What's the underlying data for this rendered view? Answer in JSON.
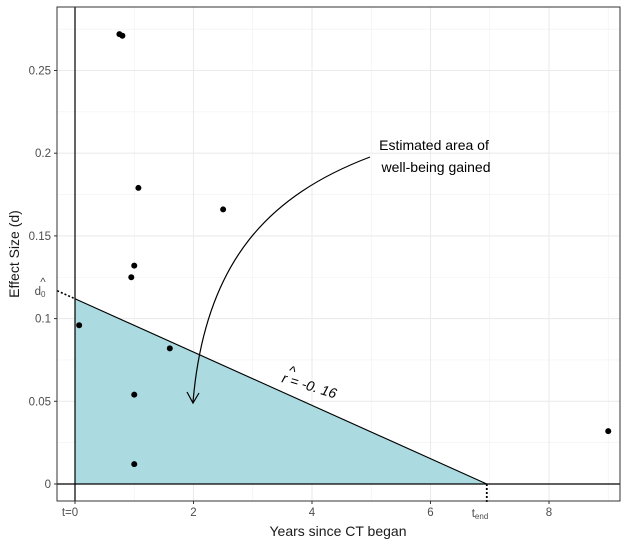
{
  "chart_data": {
    "type": "scatter",
    "xlabel": "Years since CT began",
    "ylabel": "Effect Size (d)",
    "xlim": [
      -0.3,
      9.2
    ],
    "ylim": [
      -0.005,
      0.29
    ],
    "grid": true,
    "x_ticks": [
      {
        "value": 0,
        "label": "t=0"
      },
      {
        "value": 2,
        "label": "2"
      },
      {
        "value": 4,
        "label": "4"
      },
      {
        "value": 6,
        "label": "6"
      },
      {
        "value": 8,
        "label": "8"
      }
    ],
    "y_ticks": [
      {
        "value": 0,
        "label": "0"
      },
      {
        "value": 0.05,
        "label": "0.05"
      },
      {
        "value": 0.1,
        "label": "0.1"
      },
      {
        "value": 0.15,
        "label": "0.15"
      },
      {
        "value": 0.2,
        "label": "0.2"
      },
      {
        "value": 0.25,
        "label": "0.25"
      }
    ],
    "points": [
      {
        "x": 0.75,
        "y": 0.272
      },
      {
        "x": 0.8,
        "y": 0.271
      },
      {
        "x": 1.07,
        "y": 0.179
      },
      {
        "x": 2.5,
        "y": 0.166
      },
      {
        "x": 1.0,
        "y": 0.132
      },
      {
        "x": 0.95,
        "y": 0.125
      },
      {
        "x": 0.07,
        "y": 0.096
      },
      {
        "x": 1.6,
        "y": 0.082
      },
      {
        "x": 1.0,
        "y": 0.054
      },
      {
        "x": 1.0,
        "y": 0.012
      },
      {
        "x": 9.0,
        "y": 0.032
      }
    ],
    "trend_line": {
      "x0": 0,
      "y0": 0.112,
      "x1": 6.95,
      "y1": 0
    },
    "fill_color": "#abdbe0",
    "d0_label": "d",
    "d0_subscript": "0",
    "d0_hat": "^",
    "tend_label": "t",
    "tend_subscript": "end",
    "slope_label": "r = -0. 16",
    "slope_hat": "^",
    "annotation_line1": "Estimated area of",
    "annotation_line2": "well-being gained"
  }
}
